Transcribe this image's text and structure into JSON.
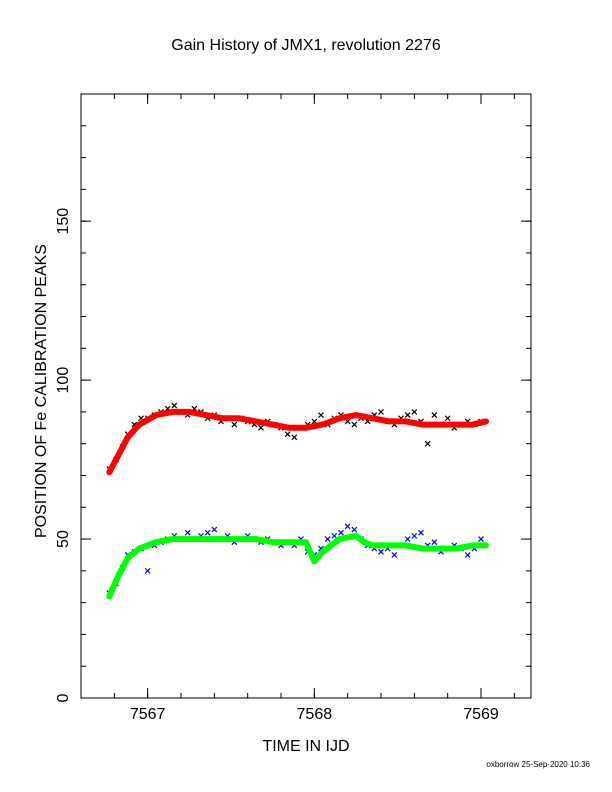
{
  "title": "Gain History of JMX1, revolution 2276",
  "footer": "oxborrow 25-Sep-2020 10:36",
  "chart_data": {
    "type": "scatter",
    "title": "Gain History of JMX1, revolution 2276",
    "xlabel": "TIME IN IJD",
    "ylabel": "POSITION OF Fe CALIBRATION PEAKS",
    "xlim": [
      7566.6,
      7569.3
    ],
    "ylim": [
      0,
      190
    ],
    "xticks": [
      7567,
      7568,
      7569
    ],
    "yticks": [
      0,
      50,
      100,
      150
    ],
    "grid": false,
    "series": [
      {
        "color": "#000000",
        "marker": "x",
        "x": [
          7566.77,
          7566.81,
          7566.85,
          7566.88,
          7566.92,
          7566.96,
          7567.0,
          7567.04,
          7567.08,
          7567.12,
          7567.16,
          7567.2,
          7567.24,
          7567.28,
          7567.32,
          7567.36,
          7567.4,
          7567.44,
          7567.48,
          7567.52,
          7567.56,
          7567.6,
          7567.64,
          7567.68,
          7567.72,
          7567.76,
          7567.8,
          7567.84,
          7567.88,
          7567.92,
          7567.96,
          7568.0,
          7568.04,
          7568.08,
          7568.12,
          7568.16,
          7568.2,
          7568.24,
          7568.28,
          7568.32,
          7568.36,
          7568.4,
          7568.44,
          7568.48,
          7568.52,
          7568.56,
          7568.6,
          7568.64,
          7568.68,
          7568.72,
          7568.76,
          7568.8,
          7568.84,
          7568.88,
          7568.92,
          7568.96,
          7569.0
        ],
        "y": [
          72,
          75,
          79,
          83,
          86,
          88,
          88,
          89,
          90,
          91,
          92,
          90,
          89,
          91,
          90,
          88,
          89,
          87,
          88,
          86,
          88,
          87,
          86,
          85,
          87,
          86,
          85,
          83,
          82,
          85,
          86,
          87,
          89,
          86,
          88,
          89,
          87,
          86,
          88,
          87,
          89,
          90,
          87,
          86,
          88,
          89,
          90,
          87,
          80,
          89,
          86,
          88,
          85,
          86,
          87,
          86,
          87
        ]
      },
      {
        "color": "#0000ff",
        "marker": "x",
        "x": [
          7566.77,
          7566.81,
          7566.85,
          7566.88,
          7566.92,
          7566.96,
          7567.0,
          7567.04,
          7567.08,
          7567.12,
          7567.16,
          7567.2,
          7567.24,
          7567.28,
          7567.32,
          7567.36,
          7567.4,
          7567.44,
          7567.48,
          7567.52,
          7567.56,
          7567.6,
          7567.64,
          7567.68,
          7567.72,
          7567.76,
          7567.8,
          7567.84,
          7567.88,
          7567.92,
          7567.96,
          7568.0,
          7568.04,
          7568.08,
          7568.12,
          7568.16,
          7568.2,
          7568.24,
          7568.28,
          7568.32,
          7568.36,
          7568.4,
          7568.44,
          7568.48,
          7568.52,
          7568.56,
          7568.6,
          7568.64,
          7568.68,
          7568.72,
          7568.76,
          7568.8,
          7568.84,
          7568.88,
          7568.92,
          7568.96,
          7569.0
        ],
        "y": [
          33,
          36,
          41,
          45,
          46,
          47,
          40,
          48,
          49,
          50,
          51,
          50,
          52,
          50,
          51,
          52,
          53,
          50,
          51,
          49,
          50,
          51,
          50,
          49,
          50,
          49,
          48,
          49,
          48,
          50,
          46,
          45,
          47,
          50,
          51,
          52,
          54,
          53,
          50,
          48,
          47,
          46,
          47,
          45,
          48,
          50,
          51,
          52,
          48,
          49,
          46,
          47,
          48,
          47,
          45,
          47,
          50
        ]
      },
      {
        "color": "#ff0000",
        "marker": "line",
        "x": [
          7566.77,
          7566.82,
          7566.88,
          7566.95,
          7567.05,
          7567.15,
          7567.25,
          7567.35,
          7567.45,
          7567.55,
          7567.65,
          7567.75,
          7567.85,
          7567.95,
          7568.05,
          7568.15,
          7568.25,
          7568.35,
          7568.45,
          7568.55,
          7568.65,
          7568.75,
          7568.85,
          7568.95,
          7569.03
        ],
        "y": [
          71,
          76,
          82,
          86,
          89,
          90,
          90,
          89,
          88,
          88,
          87,
          86,
          85,
          85,
          86,
          88,
          89,
          88,
          87,
          87,
          86,
          86,
          86,
          86,
          87
        ]
      },
      {
        "color": "#00ff00",
        "marker": "line",
        "x": [
          7566.77,
          7566.82,
          7566.88,
          7566.95,
          7567.05,
          7567.15,
          7567.25,
          7567.35,
          7567.45,
          7567.55,
          7567.65,
          7567.75,
          7567.85,
          7567.95,
          7568.0,
          7568.05,
          7568.15,
          7568.25,
          7568.3,
          7568.35,
          7568.45,
          7568.55,
          7568.65,
          7568.75,
          7568.85,
          7568.95,
          7569.03
        ],
        "y": [
          32,
          38,
          44,
          47,
          49,
          50,
          50,
          50,
          50,
          50,
          50,
          49,
          49,
          49,
          43,
          46,
          50,
          51,
          49,
          48,
          48,
          48,
          47,
          47,
          47,
          48,
          48
        ]
      }
    ]
  }
}
